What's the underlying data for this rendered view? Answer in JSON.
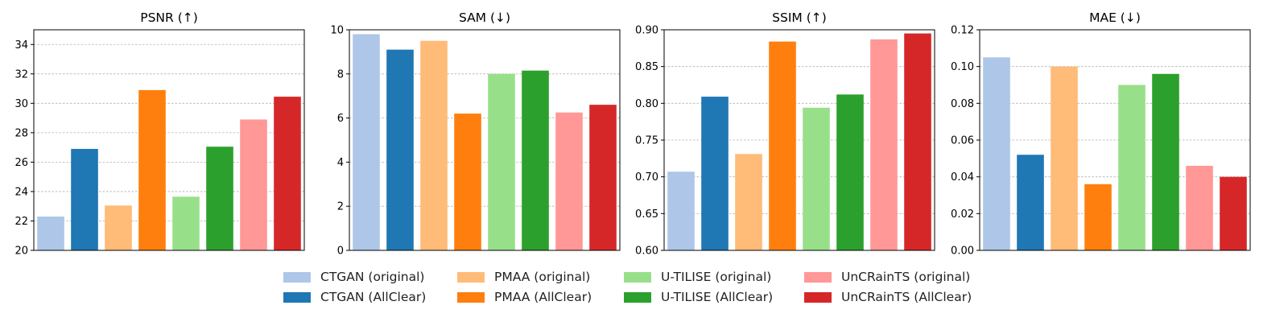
{
  "series_legend": [
    {
      "name": "CTGAN (original)",
      "color": "#aec7e8"
    },
    {
      "name": "CTGAN (AllClear)",
      "color": "#1f77b4"
    },
    {
      "name": "PMAA (original)",
      "color": "#ffbb78"
    },
    {
      "name": "PMAA (AllClear)",
      "color": "#ff7f0e"
    },
    {
      "name": "U-TILISE (original)",
      "color": "#98df8a"
    },
    {
      "name": "U-TILISE (AllClear)",
      "color": "#2ca02c"
    },
    {
      "name": "UnCRainTS (original)",
      "color": "#ff9896"
    },
    {
      "name": "UnCRainTS (AllClear)",
      "color": "#d62728"
    }
  ],
  "chart_data": [
    {
      "type": "bar",
      "title": "PSNR (↑)",
      "categories": [
        "CTGAN (original)",
        "CTGAN (AllClear)",
        "PMAA (original)",
        "PMAA (AllClear)",
        "U-TILISE (original)",
        "U-TILISE (AllClear)",
        "UnCRainTS (original)",
        "UnCRainTS (AllClear)"
      ],
      "values": [
        22.3,
        26.9,
        23.05,
        30.9,
        23.65,
        27.05,
        28.9,
        30.45
      ],
      "ylim": [
        20,
        35
      ],
      "yticks": [
        20,
        22,
        24,
        26,
        28,
        30,
        32,
        34
      ],
      "ytick_labels": [
        "20",
        "22",
        "24",
        "26",
        "28",
        "30",
        "32",
        "34"
      ],
      "grid": true,
      "legend_position": "bottom"
    },
    {
      "type": "bar",
      "title": "SAM (↓)",
      "categories": [
        "CTGAN (original)",
        "CTGAN (AllClear)",
        "PMAA (original)",
        "PMAA (AllClear)",
        "U-TILISE (original)",
        "U-TILISE (AllClear)",
        "UnCRainTS (original)",
        "UnCRainTS (AllClear)"
      ],
      "values": [
        9.8,
        9.1,
        9.5,
        6.2,
        8.0,
        8.15,
        6.25,
        6.6
      ],
      "ylim": [
        0,
        10
      ],
      "yticks": [
        0,
        2,
        4,
        6,
        8,
        10
      ],
      "ytick_labels": [
        "0",
        "2",
        "4",
        "6",
        "8",
        "10"
      ],
      "grid": true,
      "legend_position": "bottom"
    },
    {
      "type": "bar",
      "title": "SSIM (↑)",
      "categories": [
        "CTGAN (original)",
        "CTGAN (AllClear)",
        "PMAA (original)",
        "PMAA (AllClear)",
        "U-TILISE (original)",
        "U-TILISE (AllClear)",
        "UnCRainTS (original)",
        "UnCRainTS (AllClear)"
      ],
      "values": [
        0.707,
        0.809,
        0.731,
        0.884,
        0.794,
        0.812,
        0.887,
        0.895
      ],
      "ylim": [
        0.6,
        0.9
      ],
      "yticks": [
        0.6,
        0.65,
        0.7,
        0.75,
        0.8,
        0.85,
        0.9
      ],
      "ytick_labels": [
        "0.60",
        "0.65",
        "0.70",
        "0.75",
        "0.80",
        "0.85",
        "0.90"
      ],
      "grid": true,
      "legend_position": "bottom"
    },
    {
      "type": "bar",
      "title": "MAE (↓)",
      "categories": [
        "CTGAN (original)",
        "CTGAN (AllClear)",
        "PMAA (original)",
        "PMAA (AllClear)",
        "U-TILISE (original)",
        "U-TILISE (AllClear)",
        "UnCRainTS (original)",
        "UnCRainTS (AllClear)"
      ],
      "values": [
        0.105,
        0.052,
        0.1,
        0.036,
        0.09,
        0.096,
        0.046,
        0.04
      ],
      "ylim": [
        0,
        0.12
      ],
      "yticks": [
        0,
        0.02,
        0.04,
        0.06,
        0.08,
        0.1,
        0.12
      ],
      "ytick_labels": [
        "0.00",
        "0.02",
        "0.04",
        "0.06",
        "0.08",
        "0.10",
        "0.12"
      ],
      "grid": true,
      "legend_position": "bottom"
    }
  ]
}
